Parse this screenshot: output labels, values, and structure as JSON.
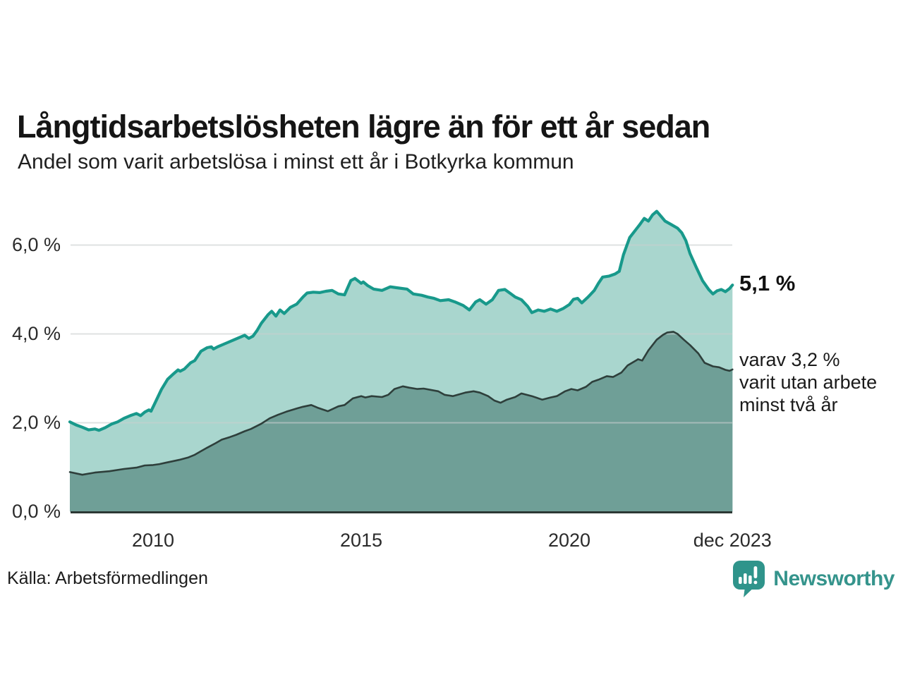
{
  "header": {
    "title": "Långtidsarbetslösheten lägre än för ett år sedan",
    "subtitle": "Andel som varit arbetslösa i minst ett år i Botkyrka kommun"
  },
  "annotations": {
    "final_total": "5,1 %",
    "secondary_lines": [
      "varav 3,2 %",
      "varit utan arbete",
      "minst två år"
    ]
  },
  "footer": {
    "source": "Källa: Arbetsförmedlingen",
    "brand": "Newsworthy"
  },
  "colors": {
    "total_line": "#18998b",
    "total_fill": "#a9d6ce",
    "two_year_line": "#2e3f3b",
    "two_year_fill": "#6f9f97",
    "gridline": "#c9cfcf",
    "baseline": "#2c3834",
    "brand_teal": "#35948c"
  },
  "chart_data": {
    "type": "area",
    "title": "Långtidsarbetslösheten lägre än för ett år sedan",
    "subtitle": "Andel som varit arbetslösa i minst ett år i Botkyrka kommun",
    "unit": "%",
    "grid": true,
    "x_axis": {
      "range": [
        2008.02,
        2023.92
      ],
      "ticks": [
        {
          "year": 2010,
          "label": "2010"
        },
        {
          "year": 2015,
          "label": "2015"
        },
        {
          "year": 2020,
          "label": "2020"
        },
        {
          "year": 2023.92,
          "label": "dec 2023"
        }
      ]
    },
    "y_axis": {
      "range": [
        0,
        6.95
      ],
      "ticks": [
        {
          "value": 0,
          "label": "0,0 %"
        },
        {
          "value": 2,
          "label": "2,0 %"
        },
        {
          "value": 4,
          "label": "4,0 %"
        },
        {
          "value": 6,
          "label": "6,0 %"
        }
      ],
      "gridline_values": [
        2,
        4,
        6
      ]
    },
    "series": [
      {
        "name": "Arbetslösa minst ett år",
        "end_label": "5,1 %",
        "end_value": 5.1,
        "points": [
          [
            2008.0,
            2.02
          ],
          [
            2008.15,
            1.95
          ],
          [
            2008.3,
            1.9
          ],
          [
            2008.45,
            1.84
          ],
          [
            2008.6,
            1.86
          ],
          [
            2008.7,
            1.83
          ],
          [
            2008.85,
            1.89
          ],
          [
            2009.0,
            1.97
          ],
          [
            2009.15,
            2.02
          ],
          [
            2009.3,
            2.1
          ],
          [
            2009.45,
            2.16
          ],
          [
            2009.6,
            2.21
          ],
          [
            2009.7,
            2.16
          ],
          [
            2009.8,
            2.24
          ],
          [
            2009.9,
            2.29
          ],
          [
            2009.95,
            2.26
          ],
          [
            2010.05,
            2.45
          ],
          [
            2010.2,
            2.75
          ],
          [
            2010.35,
            2.98
          ],
          [
            2010.5,
            3.11
          ],
          [
            2010.6,
            3.19
          ],
          [
            2010.65,
            3.16
          ],
          [
            2010.75,
            3.21
          ],
          [
            2010.9,
            3.35
          ],
          [
            2011.0,
            3.4
          ],
          [
            2011.15,
            3.61
          ],
          [
            2011.3,
            3.69
          ],
          [
            2011.4,
            3.71
          ],
          [
            2011.45,
            3.66
          ],
          [
            2011.55,
            3.71
          ],
          [
            2011.7,
            3.77
          ],
          [
            2011.8,
            3.81
          ],
          [
            2011.95,
            3.87
          ],
          [
            2012.1,
            3.93
          ],
          [
            2012.2,
            3.97
          ],
          [
            2012.3,
            3.9
          ],
          [
            2012.4,
            3.95
          ],
          [
            2012.5,
            4.08
          ],
          [
            2012.6,
            4.24
          ],
          [
            2012.76,
            4.43
          ],
          [
            2012.85,
            4.51
          ],
          [
            2012.95,
            4.4
          ],
          [
            2013.05,
            4.54
          ],
          [
            2013.15,
            4.46
          ],
          [
            2013.3,
            4.6
          ],
          [
            2013.45,
            4.67
          ],
          [
            2013.6,
            4.83
          ],
          [
            2013.7,
            4.92
          ],
          [
            2013.85,
            4.94
          ],
          [
            2014.0,
            4.93
          ],
          [
            2014.15,
            4.96
          ],
          [
            2014.3,
            4.98
          ],
          [
            2014.45,
            4.9
          ],
          [
            2014.6,
            4.88
          ],
          [
            2014.75,
            5.2
          ],
          [
            2014.85,
            5.25
          ],
          [
            2015.0,
            5.14
          ],
          [
            2015.05,
            5.17
          ],
          [
            2015.15,
            5.09
          ],
          [
            2015.3,
            5.01
          ],
          [
            2015.5,
            4.98
          ],
          [
            2015.7,
            5.06
          ],
          [
            2015.85,
            5.04
          ],
          [
            2016.1,
            5.01
          ],
          [
            2016.25,
            4.9
          ],
          [
            2016.45,
            4.87
          ],
          [
            2016.6,
            4.83
          ],
          [
            2016.75,
            4.8
          ],
          [
            2016.9,
            4.75
          ],
          [
            2017.1,
            4.77
          ],
          [
            2017.25,
            4.72
          ],
          [
            2017.45,
            4.64
          ],
          [
            2017.6,
            4.54
          ],
          [
            2017.75,
            4.72
          ],
          [
            2017.85,
            4.77
          ],
          [
            2018.0,
            4.67
          ],
          [
            2018.15,
            4.77
          ],
          [
            2018.3,
            4.98
          ],
          [
            2018.45,
            5.0
          ],
          [
            2018.6,
            4.9
          ],
          [
            2018.7,
            4.83
          ],
          [
            2018.85,
            4.77
          ],
          [
            2019.0,
            4.62
          ],
          [
            2019.1,
            4.48
          ],
          [
            2019.25,
            4.54
          ],
          [
            2019.4,
            4.51
          ],
          [
            2019.55,
            4.56
          ],
          [
            2019.7,
            4.51
          ],
          [
            2019.85,
            4.57
          ],
          [
            2020.0,
            4.66
          ],
          [
            2020.1,
            4.78
          ],
          [
            2020.2,
            4.8
          ],
          [
            2020.3,
            4.7
          ],
          [
            2020.45,
            4.83
          ],
          [
            2020.6,
            4.98
          ],
          [
            2020.7,
            5.14
          ],
          [
            2020.8,
            5.28
          ],
          [
            2020.95,
            5.3
          ],
          [
            2021.1,
            5.35
          ],
          [
            2021.2,
            5.41
          ],
          [
            2021.3,
            5.78
          ],
          [
            2021.45,
            6.17
          ],
          [
            2021.6,
            6.35
          ],
          [
            2021.7,
            6.47
          ],
          [
            2021.8,
            6.6
          ],
          [
            2021.9,
            6.54
          ],
          [
            2022.0,
            6.68
          ],
          [
            2022.1,
            6.76
          ],
          [
            2022.2,
            6.65
          ],
          [
            2022.3,
            6.54
          ],
          [
            2022.45,
            6.46
          ],
          [
            2022.6,
            6.38
          ],
          [
            2022.7,
            6.28
          ],
          [
            2022.8,
            6.1
          ],
          [
            2022.9,
            5.81
          ],
          [
            2023.05,
            5.5
          ],
          [
            2023.2,
            5.2
          ],
          [
            2023.35,
            5.0
          ],
          [
            2023.45,
            4.9
          ],
          [
            2023.55,
            4.97
          ],
          [
            2023.65,
            5.0
          ],
          [
            2023.75,
            4.95
          ],
          [
            2023.85,
            5.02
          ],
          [
            2023.92,
            5.1
          ]
        ]
      },
      {
        "name": "Arbetslösa minst två år",
        "end_label": "varav 3,2 % varit utan arbete minst två år",
        "end_value": 3.2,
        "points": [
          [
            2008.0,
            0.89
          ],
          [
            2008.3,
            0.83
          ],
          [
            2008.6,
            0.88
          ],
          [
            2008.95,
            0.91
          ],
          [
            2009.3,
            0.96
          ],
          [
            2009.6,
            0.99
          ],
          [
            2009.8,
            1.04
          ],
          [
            2010.0,
            1.05
          ],
          [
            2010.15,
            1.07
          ],
          [
            2010.3,
            1.1
          ],
          [
            2010.5,
            1.14
          ],
          [
            2010.65,
            1.17
          ],
          [
            2010.85,
            1.22
          ],
          [
            2011.0,
            1.28
          ],
          [
            2011.15,
            1.36
          ],
          [
            2011.3,
            1.44
          ],
          [
            2011.5,
            1.54
          ],
          [
            2011.65,
            1.62
          ],
          [
            2011.85,
            1.68
          ],
          [
            2012.0,
            1.73
          ],
          [
            2012.2,
            1.81
          ],
          [
            2012.35,
            1.86
          ],
          [
            2012.6,
            1.98
          ],
          [
            2012.8,
            2.1
          ],
          [
            2013.0,
            2.18
          ],
          [
            2013.2,
            2.25
          ],
          [
            2013.45,
            2.32
          ],
          [
            2013.6,
            2.36
          ],
          [
            2013.8,
            2.4
          ],
          [
            2013.95,
            2.34
          ],
          [
            2014.2,
            2.26
          ],
          [
            2014.45,
            2.37
          ],
          [
            2014.6,
            2.4
          ],
          [
            2014.8,
            2.55
          ],
          [
            2015.0,
            2.6
          ],
          [
            2015.1,
            2.57
          ],
          [
            2015.25,
            2.6
          ],
          [
            2015.5,
            2.58
          ],
          [
            2015.65,
            2.63
          ],
          [
            2015.8,
            2.76
          ],
          [
            2016.0,
            2.82
          ],
          [
            2016.15,
            2.79
          ],
          [
            2016.35,
            2.76
          ],
          [
            2016.5,
            2.77
          ],
          [
            2016.85,
            2.71
          ],
          [
            2017.0,
            2.63
          ],
          [
            2017.2,
            2.6
          ],
          [
            2017.5,
            2.68
          ],
          [
            2017.7,
            2.71
          ],
          [
            2017.85,
            2.68
          ],
          [
            2018.05,
            2.6
          ],
          [
            2018.2,
            2.5
          ],
          [
            2018.35,
            2.45
          ],
          [
            2018.5,
            2.52
          ],
          [
            2018.7,
            2.58
          ],
          [
            2018.85,
            2.66
          ],
          [
            2019.1,
            2.6
          ],
          [
            2019.35,
            2.52
          ],
          [
            2019.55,
            2.57
          ],
          [
            2019.7,
            2.6
          ],
          [
            2019.9,
            2.71
          ],
          [
            2020.05,
            2.76
          ],
          [
            2020.2,
            2.73
          ],
          [
            2020.4,
            2.81
          ],
          [
            2020.55,
            2.92
          ],
          [
            2020.7,
            2.97
          ],
          [
            2020.9,
            3.05
          ],
          [
            2021.05,
            3.03
          ],
          [
            2021.25,
            3.13
          ],
          [
            2021.4,
            3.29
          ],
          [
            2021.6,
            3.4
          ],
          [
            2021.65,
            3.43
          ],
          [
            2021.75,
            3.4
          ],
          [
            2021.9,
            3.63
          ],
          [
            2022.1,
            3.87
          ],
          [
            2022.25,
            3.98
          ],
          [
            2022.35,
            4.03
          ],
          [
            2022.5,
            4.05
          ],
          [
            2022.6,
            4.0
          ],
          [
            2022.75,
            3.87
          ],
          [
            2022.9,
            3.75
          ],
          [
            2023.1,
            3.56
          ],
          [
            2023.25,
            3.35
          ],
          [
            2023.45,
            3.27
          ],
          [
            2023.6,
            3.25
          ],
          [
            2023.75,
            3.19
          ],
          [
            2023.85,
            3.17
          ],
          [
            2023.92,
            3.2
          ]
        ]
      }
    ]
  }
}
